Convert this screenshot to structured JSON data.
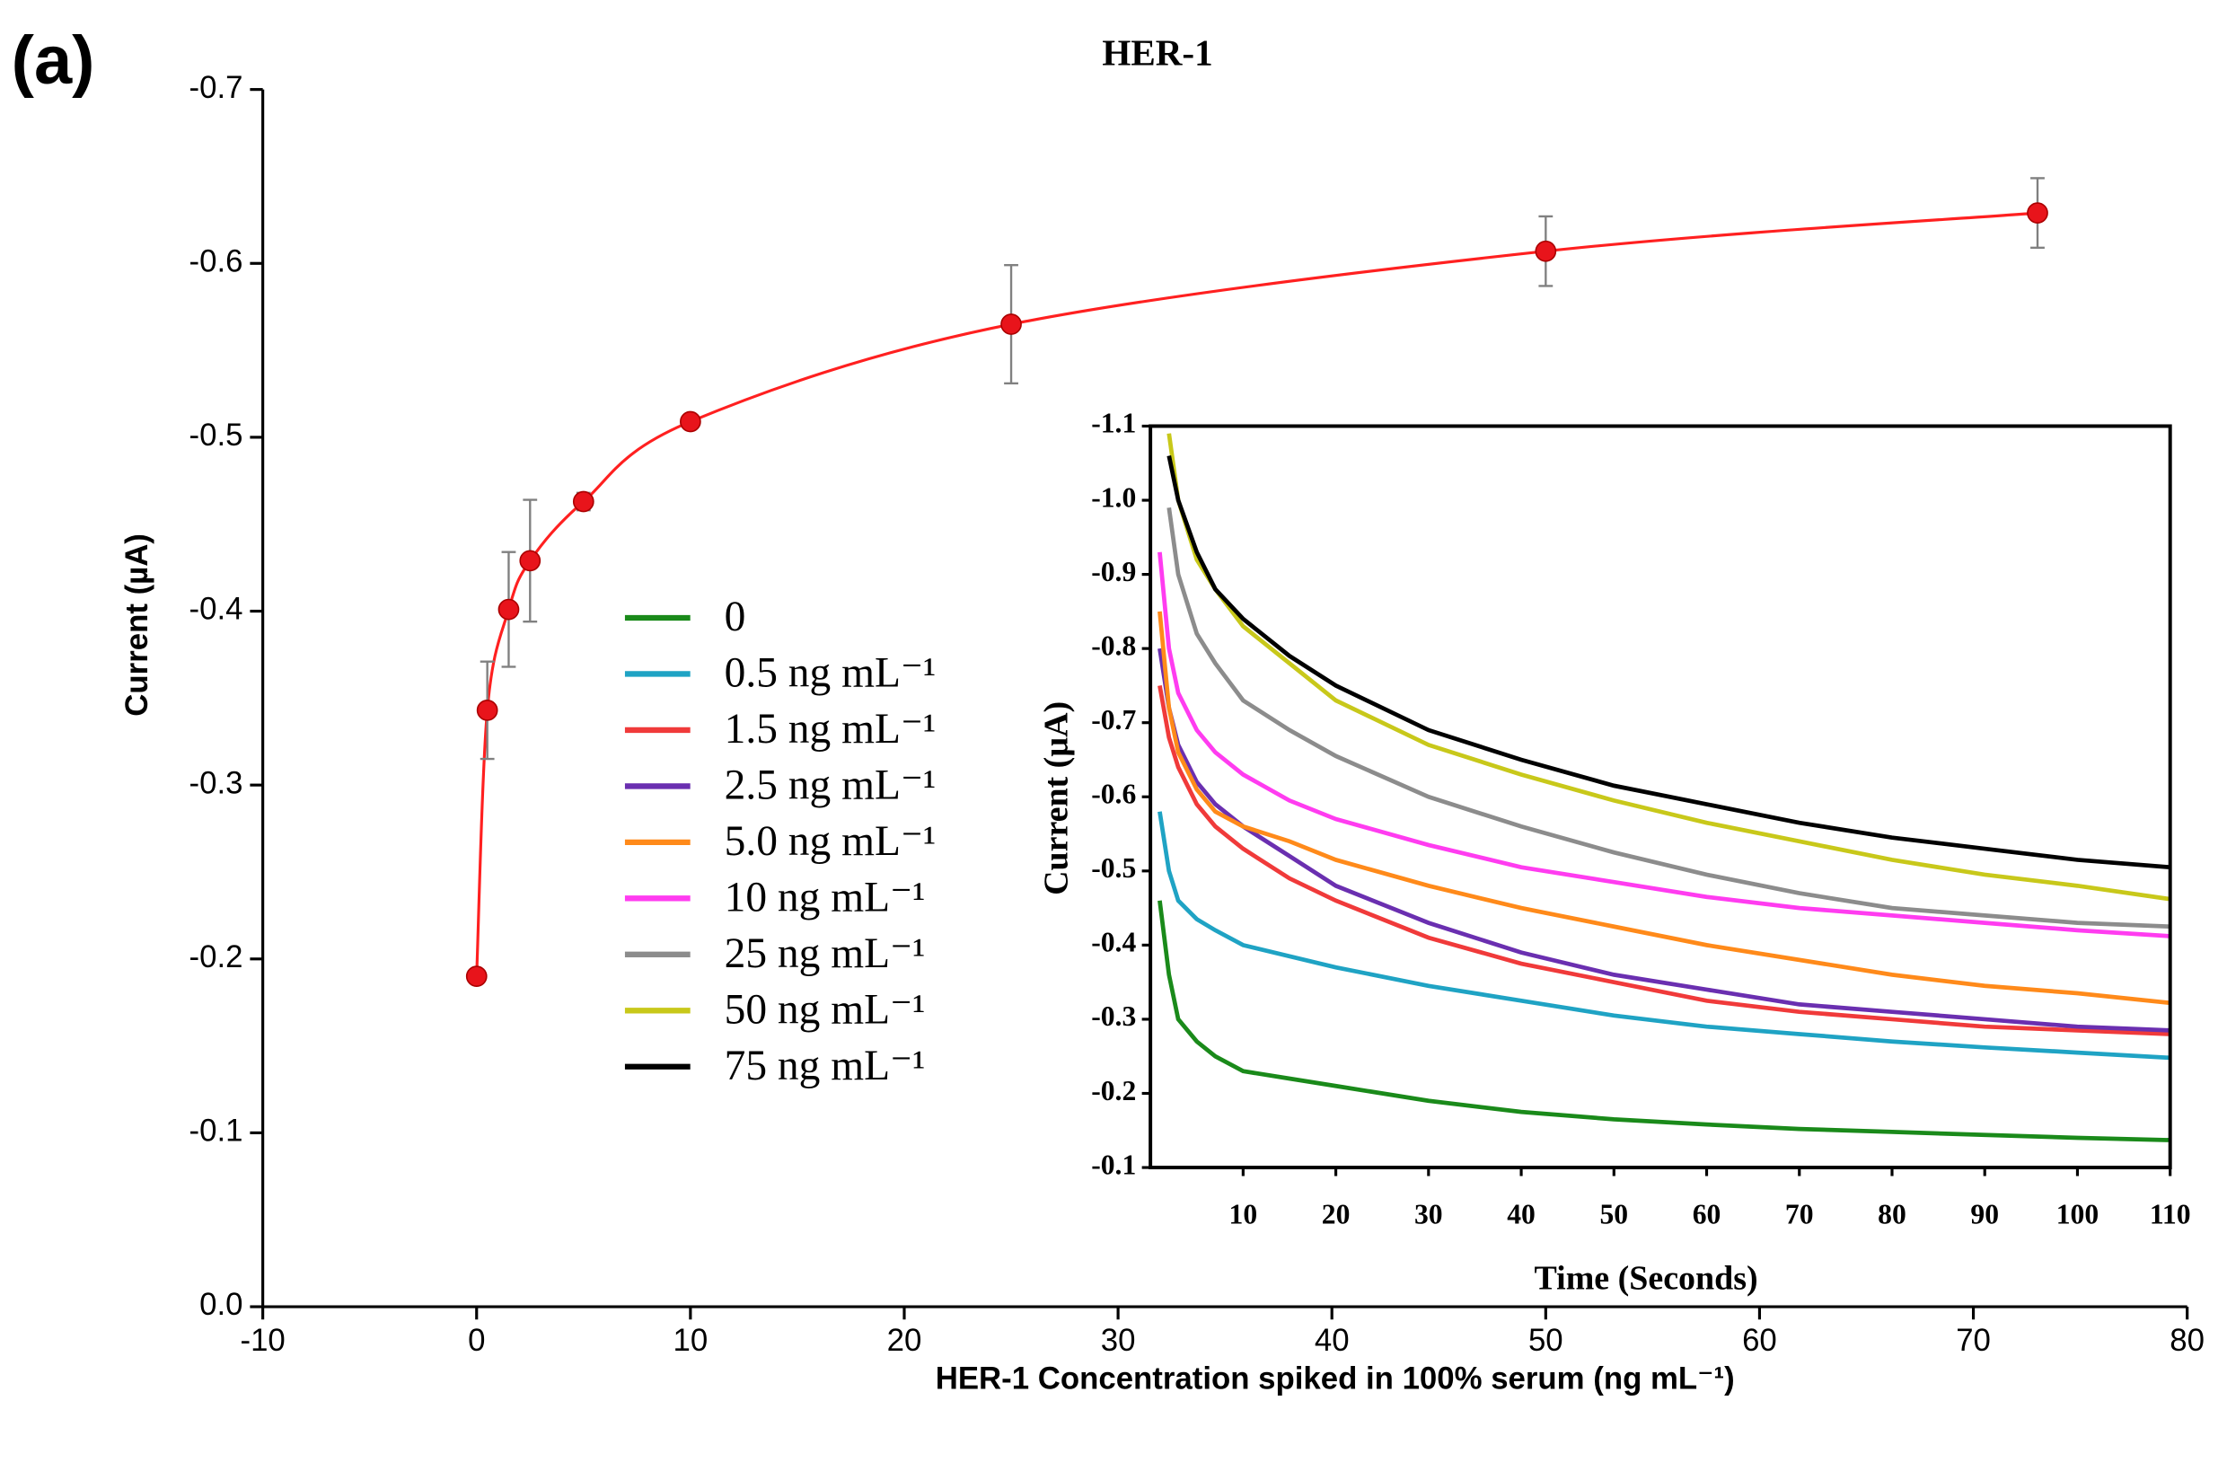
{
  "panel_label": "(a)",
  "chart_data": [
    {
      "type": "scatter",
      "title": "HER-1",
      "x_label": "HER-1 Concentration spiked in 100% serum (ng mL⁻¹)",
      "y_label": "Current (µA)",
      "x": [
        0,
        0.5,
        1.5,
        2.5,
        5,
        10,
        25,
        50,
        73
      ],
      "values": [
        -0.19,
        -0.343,
        -0.401,
        -0.429,
        -0.463,
        -0.509,
        -0.565,
        -0.607,
        -0.629
      ],
      "errors": [
        null,
        0.028,
        0.033,
        0.035,
        0.005,
        null,
        0.034,
        0.02,
        0.02
      ],
      "color": "#e8141b",
      "curve_color": "#ff2020",
      "error_color": "#808080",
      "xlim": [
        -10,
        80
      ],
      "xticks": [
        -10,
        0,
        10,
        20,
        30,
        40,
        50,
        60,
        70,
        80
      ],
      "ylim": [
        0,
        -0.7
      ],
      "yticks": [
        {
          "value": 0,
          "label": "0.0"
        },
        -0.1,
        -0.2,
        -0.3,
        -0.4,
        -0.5,
        -0.6,
        -0.7
      ]
    },
    {
      "type": "line",
      "x_label": "Time (Seconds)",
      "y_label": "Current (µA)",
      "x": [
        1,
        2,
        3,
        5,
        7,
        10,
        15,
        20,
        30,
        40,
        50,
        60,
        70,
        80,
        90,
        100,
        110
      ],
      "series": [
        {
          "name": "0",
          "color": "#1a8a1a",
          "values": [
            -0.46,
            -0.36,
            -0.3,
            -0.27,
            -0.25,
            -0.23,
            -0.22,
            -0.21,
            -0.19,
            -0.175,
            -0.165,
            -0.158,
            -0.152,
            -0.148,
            -0.144,
            -0.14,
            -0.137
          ]
        },
        {
          "name": "0.5 ng mL⁻¹",
          "color": "#1fa3c4",
          "values": [
            -0.58,
            -0.5,
            -0.46,
            -0.435,
            -0.42,
            -0.4,
            -0.385,
            -0.37,
            -0.345,
            -0.325,
            -0.305,
            -0.29,
            -0.28,
            -0.27,
            -0.262,
            -0.255,
            -0.248
          ]
        },
        {
          "name": "1.5 ng mL⁻¹",
          "color": "#f03a3a",
          "values": [
            -0.75,
            -0.68,
            -0.64,
            -0.59,
            -0.56,
            -0.53,
            -0.49,
            -0.46,
            -0.41,
            -0.375,
            -0.35,
            -0.325,
            -0.31,
            -0.3,
            -0.29,
            -0.285,
            -0.28
          ]
        },
        {
          "name": "2.5 ng mL⁻¹",
          "color": "#6a2fb0",
          "values": [
            -0.8,
            -0.72,
            -0.67,
            -0.62,
            -0.59,
            -0.56,
            -0.52,
            -0.48,
            -0.43,
            -0.39,
            -0.36,
            -0.34,
            -0.32,
            -0.31,
            -0.3,
            -0.29,
            -0.285
          ]
        },
        {
          "name": "5.0 ng mL⁻¹",
          "color": "#ff8a1a",
          "values": [
            -0.85,
            -0.72,
            -0.66,
            -0.61,
            -0.58,
            -0.56,
            -0.54,
            -0.515,
            -0.48,
            -0.45,
            -0.425,
            -0.4,
            -0.38,
            -0.36,
            -0.345,
            -0.335,
            -0.322
          ]
        },
        {
          "name": "10 ng mL⁻¹",
          "color": "#ff3cf0",
          "values": [
            -0.93,
            -0.8,
            -0.74,
            -0.69,
            -0.66,
            -0.63,
            -0.595,
            -0.57,
            -0.535,
            -0.505,
            -0.485,
            -0.465,
            -0.45,
            -0.44,
            -0.43,
            -0.42,
            -0.412
          ]
        },
        {
          "name": "25 ng mL⁻¹",
          "color": "#8c8c8c",
          "values": [
            null,
            -0.99,
            -0.9,
            -0.82,
            -0.78,
            -0.73,
            -0.69,
            -0.655,
            -0.6,
            -0.56,
            -0.525,
            -0.495,
            -0.47,
            -0.45,
            -0.44,
            -0.43,
            -0.425
          ]
        },
        {
          "name": "50 ng mL⁻¹",
          "color": "#c8c81a",
          "values": [
            null,
            -1.09,
            -1.0,
            -0.92,
            -0.88,
            -0.83,
            -0.78,
            -0.73,
            -0.67,
            -0.63,
            -0.595,
            -0.565,
            -0.54,
            -0.515,
            -0.495,
            -0.48,
            -0.462
          ]
        },
        {
          "name": "75 ng mL⁻¹",
          "color": "#000000",
          "values": [
            null,
            -1.06,
            -1.0,
            -0.93,
            -0.88,
            -0.84,
            -0.79,
            -0.75,
            -0.69,
            -0.65,
            -0.615,
            -0.59,
            -0.565,
            -0.545,
            -0.53,
            -0.515,
            -0.505
          ]
        }
      ],
      "xlim": [
        0,
        110
      ],
      "xticks": [
        10,
        20,
        30,
        40,
        50,
        60,
        70,
        80,
        90,
        100,
        110
      ],
      "ylim": [
        -0.1,
        -1.1
      ],
      "yticks": [
        -0.1,
        -0.2,
        -0.3,
        -0.4,
        -0.5,
        -0.6,
        -0.7,
        -0.8,
        -0.9,
        {
          "value": -1,
          "label": "-1.0"
        },
        -1.1
      ]
    }
  ]
}
